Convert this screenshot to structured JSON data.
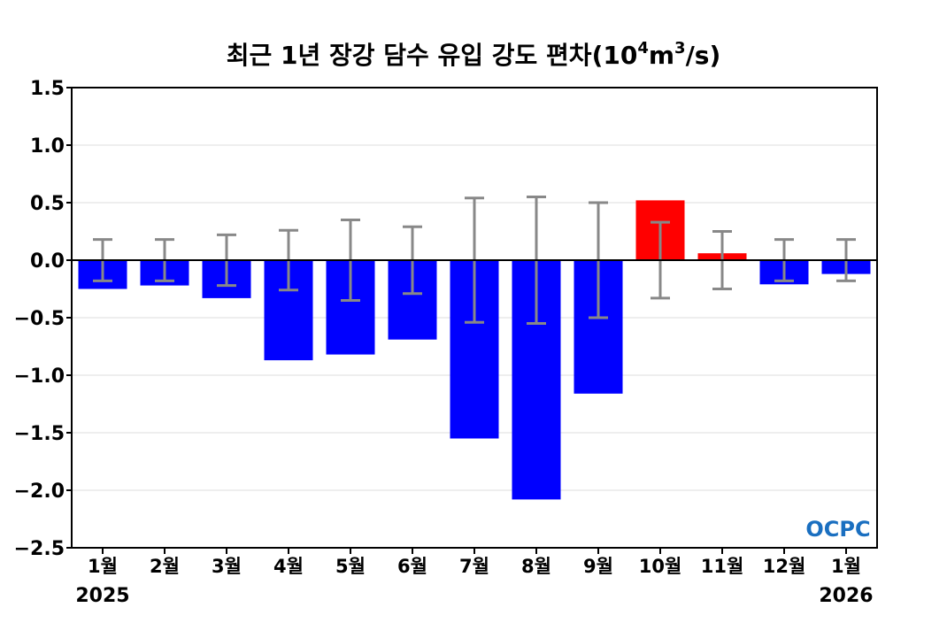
{
  "chart_data": {
    "type": "bar",
    "title": "최근 1년 장강 담수 유입 강도 편차",
    "title_unit": {
      "base": "10",
      "exp1": "4",
      "mid": "m",
      "exp2": "3",
      "tail": "/s"
    },
    "categories": [
      "1월",
      "2월",
      "3월",
      "4월",
      "5월",
      "6월",
      "7월",
      "8월",
      "9월",
      "10월",
      "11월",
      "12월",
      "1월"
    ],
    "year_labels": [
      {
        "index": 0,
        "label": "2025"
      },
      {
        "index": 12,
        "label": "2026"
      }
    ],
    "values": [
      -0.25,
      -0.22,
      -0.33,
      -0.87,
      -0.82,
      -0.69,
      -1.55,
      -2.08,
      -1.16,
      0.52,
      0.06,
      -0.21,
      -0.12
    ],
    "error": [
      0.18,
      0.18,
      0.22,
      0.26,
      0.35,
      0.29,
      0.54,
      0.55,
      0.5,
      0.33,
      0.25,
      0.18,
      0.18
    ],
    "ylim": [
      -2.5,
      1.5
    ],
    "yticks": [
      "1.5",
      "1.0",
      "0.5",
      "0.0",
      "−0.5",
      "−1.0",
      "−1.5",
      "−2.0",
      "−2.5"
    ],
    "ytick_values": [
      1.5,
      1.0,
      0.5,
      0.0,
      -0.5,
      -1.0,
      -1.5,
      -2.0,
      -2.5
    ],
    "grid": true,
    "colors": {
      "positive": "#ff0000",
      "negative": "#0000ff",
      "error": "#888888"
    },
    "logo": "OCPC"
  }
}
